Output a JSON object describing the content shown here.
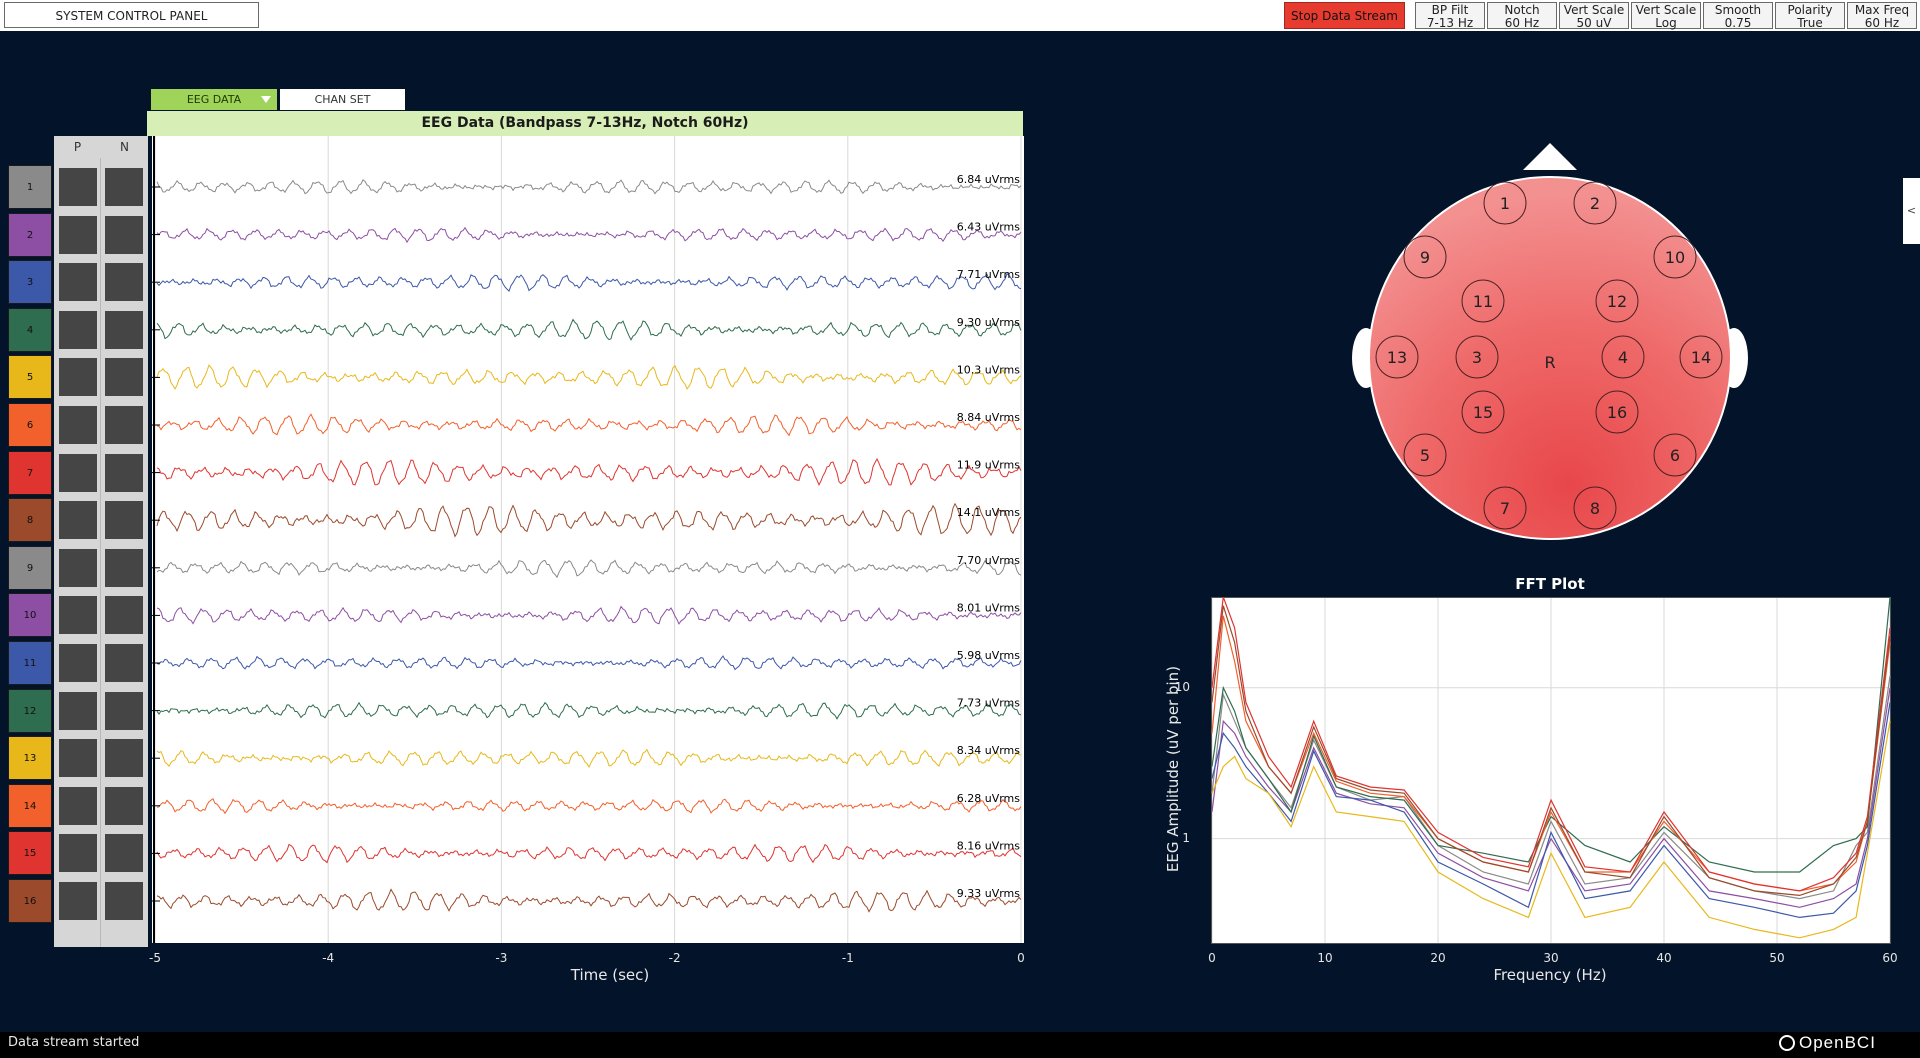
{
  "topbar": {
    "system_control_panel": "SYSTEM CONTROL PANEL",
    "stop_data_stream": "Stop Data Stream",
    "settings": [
      {
        "line1": "BP Filt",
        "line2": "7-13 Hz"
      },
      {
        "line1": "Notch",
        "line2": "60 Hz"
      },
      {
        "line1": "Vert Scale",
        "line2": "50 uV"
      },
      {
        "line1": "Vert Scale",
        "line2": "Log"
      },
      {
        "line1": "Smooth",
        "line2": "0.75"
      },
      {
        "line1": "Polarity",
        "line2": "True"
      },
      {
        "line1": "Max Freq",
        "line2": "60 Hz"
      }
    ]
  },
  "tabs": {
    "eeg": "EEG DATA",
    "chan": "CHAN SET"
  },
  "eeg_panel": {
    "header": "EEG Data (Bandpass 7-13Hz, Notch 60Hz)",
    "p_label": "P",
    "n_label": "N",
    "channels": [
      {
        "num": "1",
        "color": "#8a8a8a",
        "rms": "6.84 uVrms"
      },
      {
        "num": "2",
        "color": "#8d4fa3",
        "rms": "6.43 uVrms"
      },
      {
        "num": "3",
        "color": "#3c58a8",
        "rms": "7.71 uVrms"
      },
      {
        "num": "4",
        "color": "#2e6d4f",
        "rms": "9.30 uVrms"
      },
      {
        "num": "5",
        "color": "#e8b81a",
        "rms": "10.3 uVrms"
      },
      {
        "num": "6",
        "color": "#f2602c",
        "rms": "8.84 uVrms"
      },
      {
        "num": "7",
        "color": "#df3430",
        "rms": "11.9 uVrms"
      },
      {
        "num": "8",
        "color": "#9b4a2c",
        "rms": "14.1 uVrms"
      },
      {
        "num": "9",
        "color": "#8a8a8a",
        "rms": "7.70 uVrms"
      },
      {
        "num": "10",
        "color": "#8d4fa3",
        "rms": "8.01 uVrms"
      },
      {
        "num": "11",
        "color": "#3c58a8",
        "rms": "5.98 uVrms"
      },
      {
        "num": "12",
        "color": "#2e6d4f",
        "rms": "7.73 uVrms"
      },
      {
        "num": "13",
        "color": "#e8b81a",
        "rms": "8.34 uVrms"
      },
      {
        "num": "14",
        "color": "#f2602c",
        "rms": "6.28 uVrms"
      },
      {
        "num": "15",
        "color": "#df3430",
        "rms": "8.16 uVrms"
      },
      {
        "num": "16",
        "color": "#9b4a2c",
        "rms": "9.33 uVrms"
      }
    ],
    "x_ticks": [
      "-5",
      "-4",
      "-3",
      "-2",
      "-1",
      "0"
    ],
    "x_title": "Time (sec)"
  },
  "head_plot": {
    "reference_label": "R",
    "electrodes": [
      "1",
      "2",
      "9",
      "10",
      "11",
      "12",
      "13",
      "3",
      "4",
      "14",
      "15",
      "16",
      "5",
      "6",
      "7",
      "8"
    ],
    "fill_color": "#f08080"
  },
  "fft": {
    "title": "FFT Plot",
    "x_title": "Frequency (Hz)",
    "y_title": "EEG Amplitude (uV per bin)",
    "x_ticks": [
      "0",
      "10",
      "20",
      "30",
      "40",
      "50",
      "60"
    ],
    "y_ticks": [
      "10",
      "1"
    ]
  },
  "chart_data": {
    "type": "line",
    "title": "FFT Plot",
    "xlabel": "Frequency (Hz)",
    "ylabel": "EEG Amplitude (uV per bin)",
    "xlim": [
      0,
      60
    ],
    "ylim": [
      0.2,
      40
    ],
    "y_scale": "log",
    "grid": true,
    "x": [
      0,
      1,
      2,
      3,
      5,
      7,
      9,
      11,
      14,
      17,
      20,
      24,
      28,
      30,
      33,
      37,
      40,
      44,
      48,
      52,
      55,
      57,
      58,
      60
    ],
    "series": [
      {
        "color": "#8a8a8a",
        "values": [
          2,
          9,
          6,
          4,
          2.5,
          1.6,
          4.5,
          2.2,
          1.8,
          1.9,
          0.9,
          0.6,
          0.5,
          1.3,
          0.5,
          0.55,
          1.1,
          0.55,
          0.45,
          0.4,
          0.45,
          0.9,
          1.1,
          12
        ]
      },
      {
        "color": "#8d4fa3",
        "values": [
          1.5,
          6,
          5,
          3.5,
          2.2,
          1.5,
          4,
          2,
          1.7,
          1.6,
          0.8,
          0.55,
          0.45,
          1,
          0.45,
          0.5,
          1,
          0.45,
          0.4,
          0.35,
          0.4,
          0.5,
          1,
          10
        ]
      },
      {
        "color": "#3c58a8",
        "values": [
          2.5,
          5,
          4,
          3,
          2,
          1.3,
          3.8,
          1.9,
          1.8,
          1.5,
          0.7,
          0.5,
          0.35,
          1.1,
          0.4,
          0.45,
          0.9,
          0.4,
          0.35,
          0.3,
          0.32,
          0.45,
          0.9,
          8
        ]
      },
      {
        "color": "#2e6d4f",
        "values": [
          3,
          10,
          7,
          4,
          2.5,
          1.5,
          4.8,
          2.2,
          1.9,
          1.8,
          0.9,
          0.8,
          0.7,
          1.4,
          0.9,
          0.7,
          1.2,
          0.7,
          0.6,
          0.6,
          0.9,
          1,
          1.2,
          40
        ]
      },
      {
        "color": "#e8b81a",
        "values": [
          2,
          3,
          3.5,
          2.5,
          2,
          1.2,
          3,
          1.5,
          1.4,
          1.3,
          0.6,
          0.4,
          0.3,
          0.8,
          0.3,
          0.35,
          0.7,
          0.3,
          0.25,
          0.22,
          0.25,
          0.3,
          0.8,
          6
        ]
      },
      {
        "color": "#f2602c",
        "values": [
          5,
          30,
          15,
          6,
          3,
          2,
          5,
          2.4,
          2,
          1.9,
          1,
          0.7,
          0.6,
          1.5,
          0.6,
          0.6,
          1.3,
          0.6,
          0.5,
          0.45,
          0.5,
          0.7,
          1.3,
          20
        ]
      },
      {
        "color": "#df3430",
        "values": [
          10,
          40,
          25,
          8,
          3.5,
          2.2,
          6,
          2.6,
          2.2,
          2.1,
          1.1,
          0.75,
          0.65,
          1.8,
          0.65,
          0.6,
          1.5,
          0.6,
          0.5,
          0.45,
          0.55,
          0.8,
          1.4,
          25
        ]
      },
      {
        "color": "#9b4a2c",
        "values": [
          8,
          35,
          20,
          7,
          3,
          2,
          5.5,
          2.5,
          2.1,
          2,
          1,
          0.7,
          0.6,
          1.6,
          0.6,
          0.55,
          1.4,
          0.55,
          0.45,
          0.42,
          0.5,
          0.75,
          1.3,
          22
        ]
      }
    ]
  },
  "status": {
    "text": "Data stream started"
  },
  "brand": "OpenBCI"
}
